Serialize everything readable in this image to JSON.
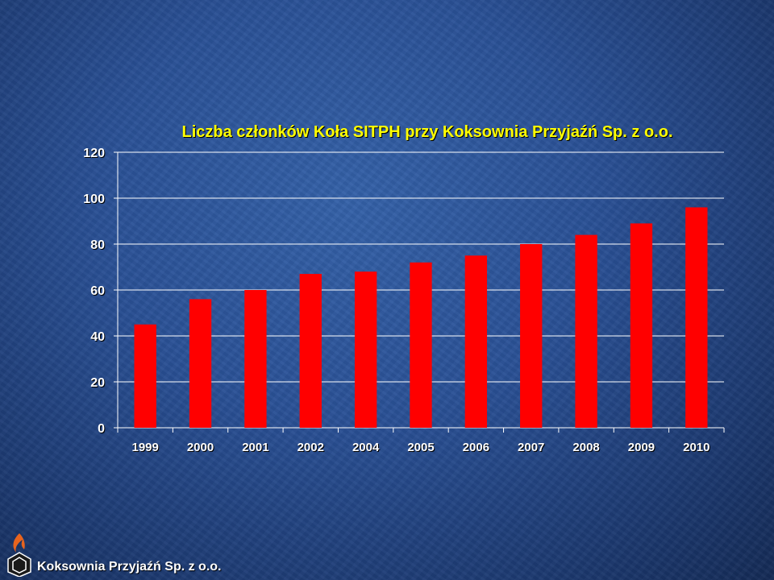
{
  "chart_data": {
    "type": "bar",
    "title": "Liczba członków Koła SITPH przy Koksownia Przyjaźń Sp. z o.o.",
    "categories": [
      "1999",
      "2000",
      "2001",
      "2002",
      "2004",
      "2005",
      "2006",
      "2007",
      "2008",
      "2009",
      "2010"
    ],
    "values": [
      45,
      56,
      60,
      67,
      68,
      72,
      75,
      80,
      84,
      89,
      96
    ],
    "ylim": [
      0,
      120
    ],
    "yticks": [
      "0",
      "20",
      "40",
      "60",
      "80",
      "100",
      "120"
    ],
    "grid": true,
    "bar_color": "#ff0000"
  },
  "footer": {
    "company": "Koksownia Przyjaźń Sp. z o.o.",
    "logo_icon": "coke-plant-logo-icon"
  }
}
